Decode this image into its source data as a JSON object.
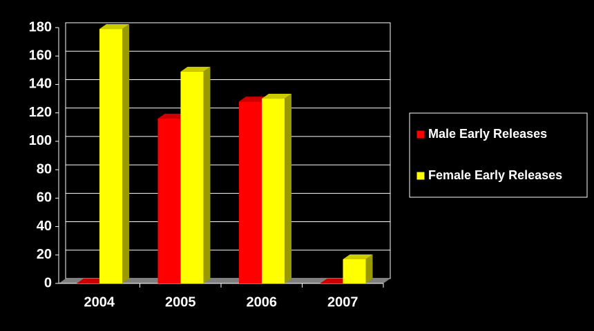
{
  "chart_data": {
    "type": "bar3d",
    "categories": [
      "2004",
      "2005",
      "2006",
      "2007"
    ],
    "series": [
      {
        "name": "Male Early Releases",
        "color": "#ff0000",
        "values": [
          0,
          116,
          128,
          0
        ]
      },
      {
        "name": "Female Early Releases",
        "color": "#ffff00",
        "values": [
          179,
          149,
          130,
          17
        ]
      }
    ],
    "ylim": [
      0,
      180
    ],
    "yticks": [
      0,
      20,
      40,
      60,
      80,
      100,
      120,
      140,
      160,
      180
    ],
    "grid": true,
    "legend": "right"
  }
}
